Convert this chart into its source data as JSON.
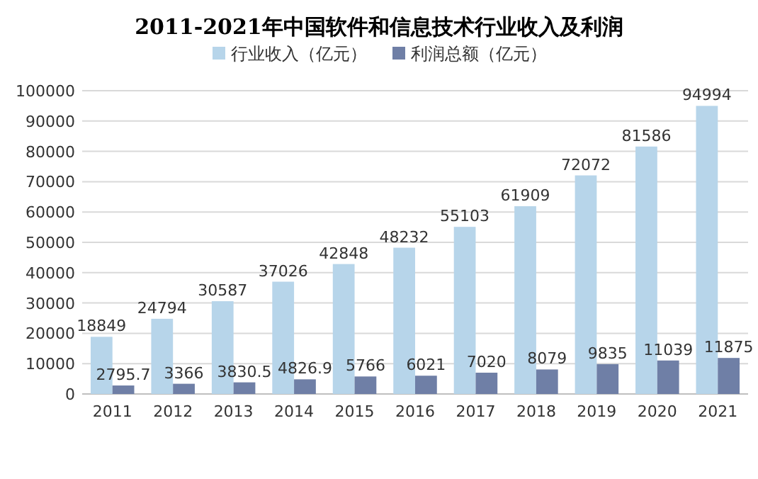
{
  "chart_data": {
    "type": "bar",
    "title": "2011-2021年中国软件和信息技术行业收入及利润",
    "categories": [
      "2011",
      "2012",
      "2013",
      "2014",
      "2015",
      "2016",
      "2017",
      "2018",
      "2019",
      "2020",
      "2021"
    ],
    "series": [
      {
        "name": "行业收入（亿元）",
        "color": "#b7d5ea",
        "values": [
          18849,
          24794,
          30587,
          37026,
          42848,
          48232,
          55103,
          61909,
          72072,
          81586,
          94994
        ]
      },
      {
        "name": "利润总额（亿元）",
        "color": "#6f7fa6",
        "values": [
          2795.7,
          3366,
          3830.5,
          4826.9,
          5766,
          6021,
          7020,
          8079,
          9835,
          11039,
          11875
        ]
      }
    ],
    "ylim": [
      0,
      100000
    ],
    "yticks": [
      0,
      10000,
      20000,
      30000,
      40000,
      50000,
      60000,
      70000,
      80000,
      90000,
      100000
    ],
    "grid": "y",
    "legend": "top",
    "data_labels": true
  }
}
